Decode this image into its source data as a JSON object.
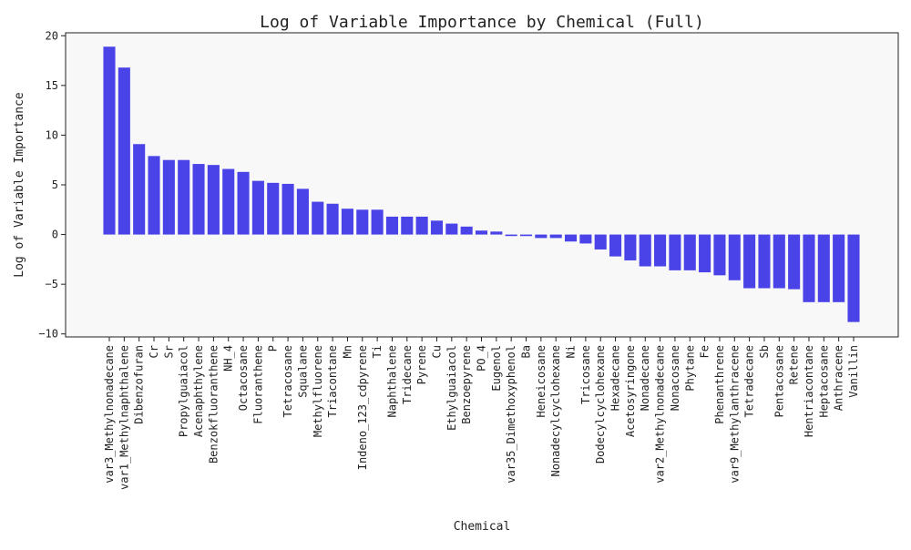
{
  "chart_data": {
    "type": "bar",
    "title": "Log of Variable Importance by Chemical (Full)",
    "xlabel": "Chemical",
    "ylabel": "Log of Variable Importance",
    "ylim": [
      -10.3,
      20.3
    ],
    "yticks": [
      -10,
      -5,
      0,
      5,
      10,
      15,
      20
    ],
    "grid": false,
    "bar_color": "#4a43e8",
    "plot_background": "#f8f8f8",
    "categories": [
      "var3_Methylnonadecane",
      "var1_Methylnaphthalene",
      "Dibenzofuran",
      "Cr",
      "Sr",
      "Propylguaiacol",
      "Acenaphthylene",
      "Benzokfluoranthene",
      "NH_4",
      "Octacosane",
      "Fluoranthene",
      "P",
      "Tetracosane",
      "Squalane",
      "Methylfluorene",
      "Triacontane",
      "Mn",
      "Indeno_123_cdpyrene",
      "Ti",
      "Naphthalene",
      "Tridecane",
      "Pyrene",
      "Cu",
      "Ethylguaiacol",
      "Benzoepyrene",
      "PO_4",
      "Eugenol",
      "var35_Dimethoxyphenol",
      "Ba",
      "Heneicosane",
      "Nonadecylcyclohexane",
      "Ni",
      "Tricosane",
      "Dodecylcyclohexane",
      "Hexadecane",
      "Acetosyringone",
      "Nonadecane",
      "var2_Methylnonadecane",
      "Nonacosane",
      "Phytane",
      "Fe",
      "Phenanthrene",
      "var9_Methylanthracene",
      "Tetradecane",
      "Sb",
      "Pentacosane",
      "Retene",
      "Hentriacontane",
      "Heptacosane",
      "Anthracene",
      "Vanillin"
    ],
    "values": [
      18.9,
      16.8,
      9.1,
      7.9,
      7.5,
      7.5,
      7.1,
      7.0,
      6.6,
      6.3,
      5.4,
      5.2,
      5.1,
      4.6,
      3.3,
      3.1,
      2.6,
      2.5,
      2.5,
      1.8,
      1.8,
      1.8,
      1.4,
      1.1,
      0.8,
      0.4,
      0.3,
      -0.15,
      -0.15,
      -0.35,
      -0.35,
      -0.7,
      -0.9,
      -1.5,
      -2.2,
      -2.6,
      -3.2,
      -3.2,
      -3.6,
      -3.6,
      -3.8,
      -4.1,
      -4.6,
      -5.4,
      -5.4,
      -5.4,
      -5.5,
      -6.8,
      -6.8,
      -6.8,
      -8.8
    ]
  }
}
